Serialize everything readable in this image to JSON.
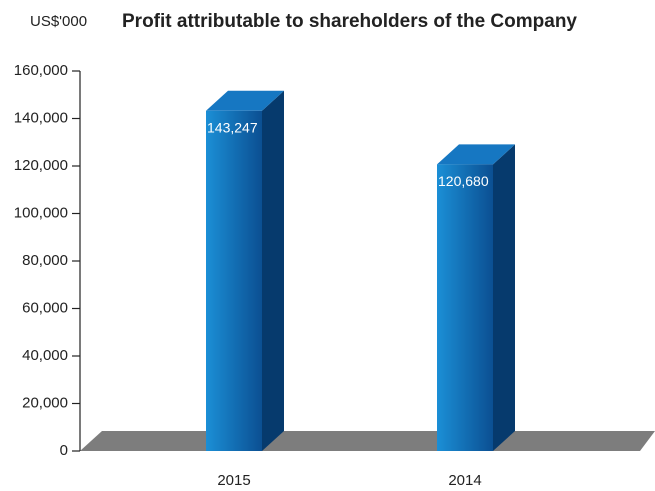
{
  "chart_data": {
    "type": "bar3d",
    "title": "Profit attributable to shareholders of the Company",
    "y_label": "US$'000",
    "categories": [
      "2015",
      "2014"
    ],
    "values": [
      143247,
      120680
    ],
    "value_labels": [
      "143,247",
      "120,680"
    ],
    "color": "#0b4f92",
    "ylim": [
      0,
      160000
    ],
    "yticks": [
      0,
      {
        "value": 20000,
        "label": "20,000"
      },
      {
        "value": 40000,
        "label": "40,000"
      },
      {
        "value": 60000,
        "label": "60,000"
      },
      {
        "value": 80000,
        "label": "80,000"
      },
      {
        "value": 100000,
        "label": "100,000"
      },
      {
        "value": 120000,
        "label": "120,000"
      },
      {
        "value": 140000,
        "label": "140,000"
      },
      {
        "value": 160000,
        "label": "160,000"
      }
    ]
  }
}
